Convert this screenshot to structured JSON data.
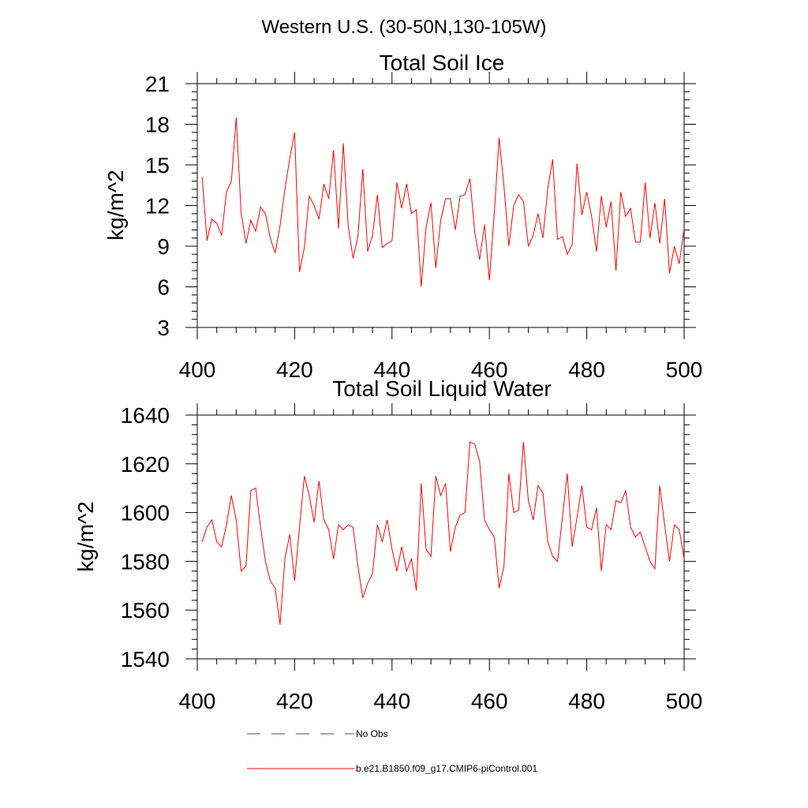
{
  "figure": {
    "title": "Western U.S. (30-50N,130-105W)"
  },
  "colors": {
    "series_line": "#ff0000",
    "obs_line": "#4a4a7a",
    "axis": "#000000",
    "background": "#ffffff"
  },
  "legend": {
    "items": [
      {
        "label": "No Obs",
        "style": "dashed",
        "color": "#4a4a7a"
      },
      {
        "label": "b.e21.B1850.f09_g17.CMIP6-piControl.001",
        "style": "solid",
        "color": "#ff0000"
      }
    ]
  },
  "chart_data": [
    {
      "type": "line",
      "title": "Total Soil Ice",
      "xlabel": "",
      "ylabel": "kg/m^2",
      "xlim": [
        400,
        500
      ],
      "ylim": [
        3,
        21
      ],
      "xticks": [
        400,
        420,
        440,
        460,
        480,
        500
      ],
      "yticks": [
        3,
        6,
        9,
        12,
        15,
        18,
        21
      ],
      "x_minor_step": 4,
      "y_minor_step": 0.6,
      "grid": false,
      "series": [
        {
          "name": "b.e21.B1850.f09_g17.CMIP6-piControl.001",
          "color": "#ff0000",
          "x_start": 401,
          "x_step": 1,
          "values": [
            14.1,
            9.4,
            11.0,
            10.7,
            9.8,
            13.0,
            13.8,
            18.5,
            11.5,
            9.2,
            10.9,
            10.1,
            11.9,
            11.4,
            9.6,
            8.5,
            10.5,
            13.2,
            15.5,
            17.4,
            7.1,
            8.9,
            12.7,
            12.0,
            11.0,
            13.6,
            12.5,
            16.1,
            10.3,
            16.6,
            10.5,
            8.1,
            9.7,
            14.7,
            8.6,
            9.8,
            12.8,
            8.9,
            9.2,
            9.4,
            13.7,
            11.8,
            13.6,
            11.4,
            11.7,
            6.0,
            10.4,
            12.2,
            7.4,
            10.9,
            12.5,
            12.5,
            10.2,
            12.7,
            12.8,
            14.0,
            10.0,
            8.0,
            10.6,
            6.5,
            11.4,
            17.0,
            13.4,
            9.0,
            12.0,
            12.8,
            12.3,
            9.0,
            9.8,
            11.4,
            9.6,
            13.3,
            15.4,
            9.5,
            9.7,
            8.4,
            9.1,
            15.1,
            11.3,
            13.0,
            11.2,
            8.6,
            12.7,
            10.4,
            12.3,
            7.2,
            13.0,
            11.2,
            11.8,
            9.3,
            9.3,
            13.7,
            9.6,
            12.2,
            9.2,
            12.5,
            7.0,
            9.0,
            7.7,
            10.3
          ]
        }
      ]
    },
    {
      "type": "line",
      "title": "Total Soil Liquid Water",
      "xlabel": "",
      "ylabel": "kg/m^2",
      "xlim": [
        400,
        500
      ],
      "ylim": [
        1540,
        1640
      ],
      "xticks": [
        400,
        420,
        440,
        460,
        480,
        500
      ],
      "yticks": [
        1540,
        1560,
        1580,
        1600,
        1620,
        1640
      ],
      "x_minor_step": 4,
      "y_minor_step": 4,
      "grid": false,
      "series": [
        {
          "name": "b.e21.B1850.f09_g17.CMIP6-piControl.001",
          "color": "#ff0000",
          "x_start": 401,
          "x_step": 1,
          "values": [
            1588,
            1594,
            1597,
            1588,
            1586,
            1595,
            1607,
            1597,
            1576,
            1578,
            1609,
            1610,
            1594,
            1580,
            1572,
            1569,
            1554,
            1581,
            1591,
            1572,
            1594,
            1615,
            1607,
            1596,
            1613,
            1597,
            1593,
            1581,
            1595,
            1593,
            1595,
            1594,
            1578,
            1565,
            1571,
            1575,
            1595,
            1588,
            1597,
            1585,
            1576,
            1586,
            1576,
            1581,
            1568,
            1612,
            1585,
            1582,
            1615,
            1607,
            1612,
            1584,
            1594,
            1599,
            1600,
            1629,
            1628,
            1621,
            1597,
            1593,
            1590,
            1569,
            1578,
            1616,
            1600,
            1601,
            1629,
            1605,
            1597,
            1611,
            1608,
            1588,
            1582,
            1580,
            1598,
            1616,
            1586,
            1598,
            1611,
            1594,
            1593,
            1602,
            1576,
            1595,
            1593,
            1605,
            1604,
            1609,
            1594,
            1590,
            1592,
            1586,
            1580,
            1577,
            1611,
            1595,
            1580,
            1595,
            1593,
            1581
          ]
        }
      ]
    }
  ]
}
